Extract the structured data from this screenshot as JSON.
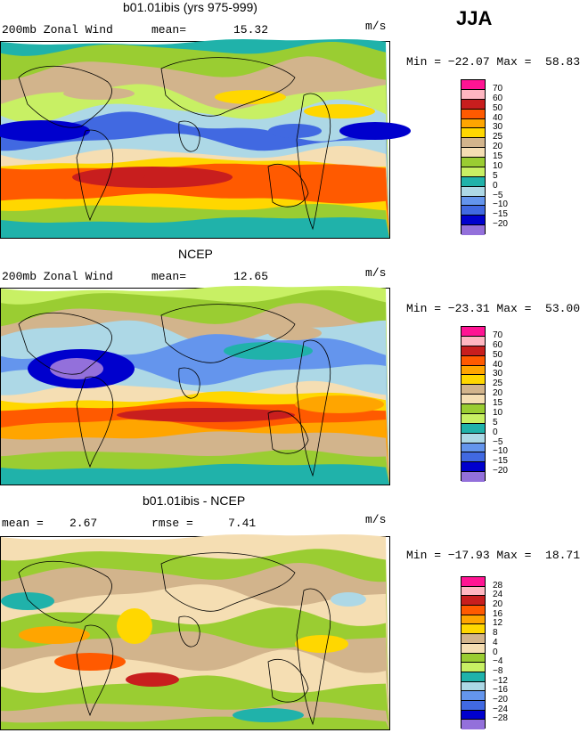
{
  "season": "JJA",
  "panels": [
    {
      "title": "b01.01ibis (yrs 975-999)",
      "variable": "200mb Zonal Wind",
      "stat1_label": "mean=",
      "stat1_value": "15.32",
      "stat2_label": "",
      "stat2_value": "",
      "units": "m/s",
      "minmax": "Min = −22.07 Max =  58.83",
      "colorbar": {
        "labels": [
          "70",
          "60",
          "50",
          "40",
          "30",
          "25",
          "20",
          "15",
          "10",
          "5",
          "0",
          "−5",
          "−10",
          "−15",
          "−20"
        ],
        "colors": [
          "#ff1493",
          "#ffb6c1",
          "#c81e1e",
          "#ff5a00",
          "#ffa500",
          "#ffd700",
          "#d2b48c",
          "#f5deb3",
          "#9acd32",
          "#c8f064",
          "#20b2aa",
          "#add8e6",
          "#6495ed",
          "#4169e1",
          "#0000cd",
          "#9370db"
        ]
      }
    },
    {
      "title": "NCEP",
      "variable": "200mb Zonal Wind",
      "stat1_label": "mean=",
      "stat1_value": "12.65",
      "stat2_label": "",
      "stat2_value": "",
      "units": "m/s",
      "minmax": "Min = −23.31 Max =  53.00",
      "colorbar": {
        "labels": [
          "70",
          "60",
          "50",
          "40",
          "30",
          "25",
          "20",
          "15",
          "10",
          "5",
          "0",
          "−5",
          "−10",
          "−15",
          "−20"
        ],
        "colors": [
          "#ff1493",
          "#ffb6c1",
          "#c81e1e",
          "#ff5a00",
          "#ffa500",
          "#ffd700",
          "#d2b48c",
          "#f5deb3",
          "#9acd32",
          "#c8f064",
          "#20b2aa",
          "#add8e6",
          "#6495ed",
          "#4169e1",
          "#0000cd",
          "#9370db"
        ]
      }
    },
    {
      "title": "b01.01ibis - NCEP",
      "variable": "",
      "stat1_label": "mean =",
      "stat1_value": "2.67",
      "stat2_label": "rmse =",
      "stat2_value": "7.41",
      "units": "m/s",
      "minmax": "Min = −17.93 Max =  18.71",
      "colorbar": {
        "labels": [
          "28",
          "24",
          "20",
          "16",
          "12",
          "8",
          "4",
          "0",
          "−4",
          "−8",
          "−12",
          "−16",
          "−20",
          "−24",
          "−28"
        ],
        "colors": [
          "#ff1493",
          "#ffb6c1",
          "#c81e1e",
          "#ff5a00",
          "#ffa500",
          "#ffd700",
          "#d2b48c",
          "#f5deb3",
          "#9acd32",
          "#c8f064",
          "#20b2aa",
          "#add8e6",
          "#6495ed",
          "#4169e1",
          "#0000cd",
          "#9370db"
        ]
      }
    }
  ]
}
